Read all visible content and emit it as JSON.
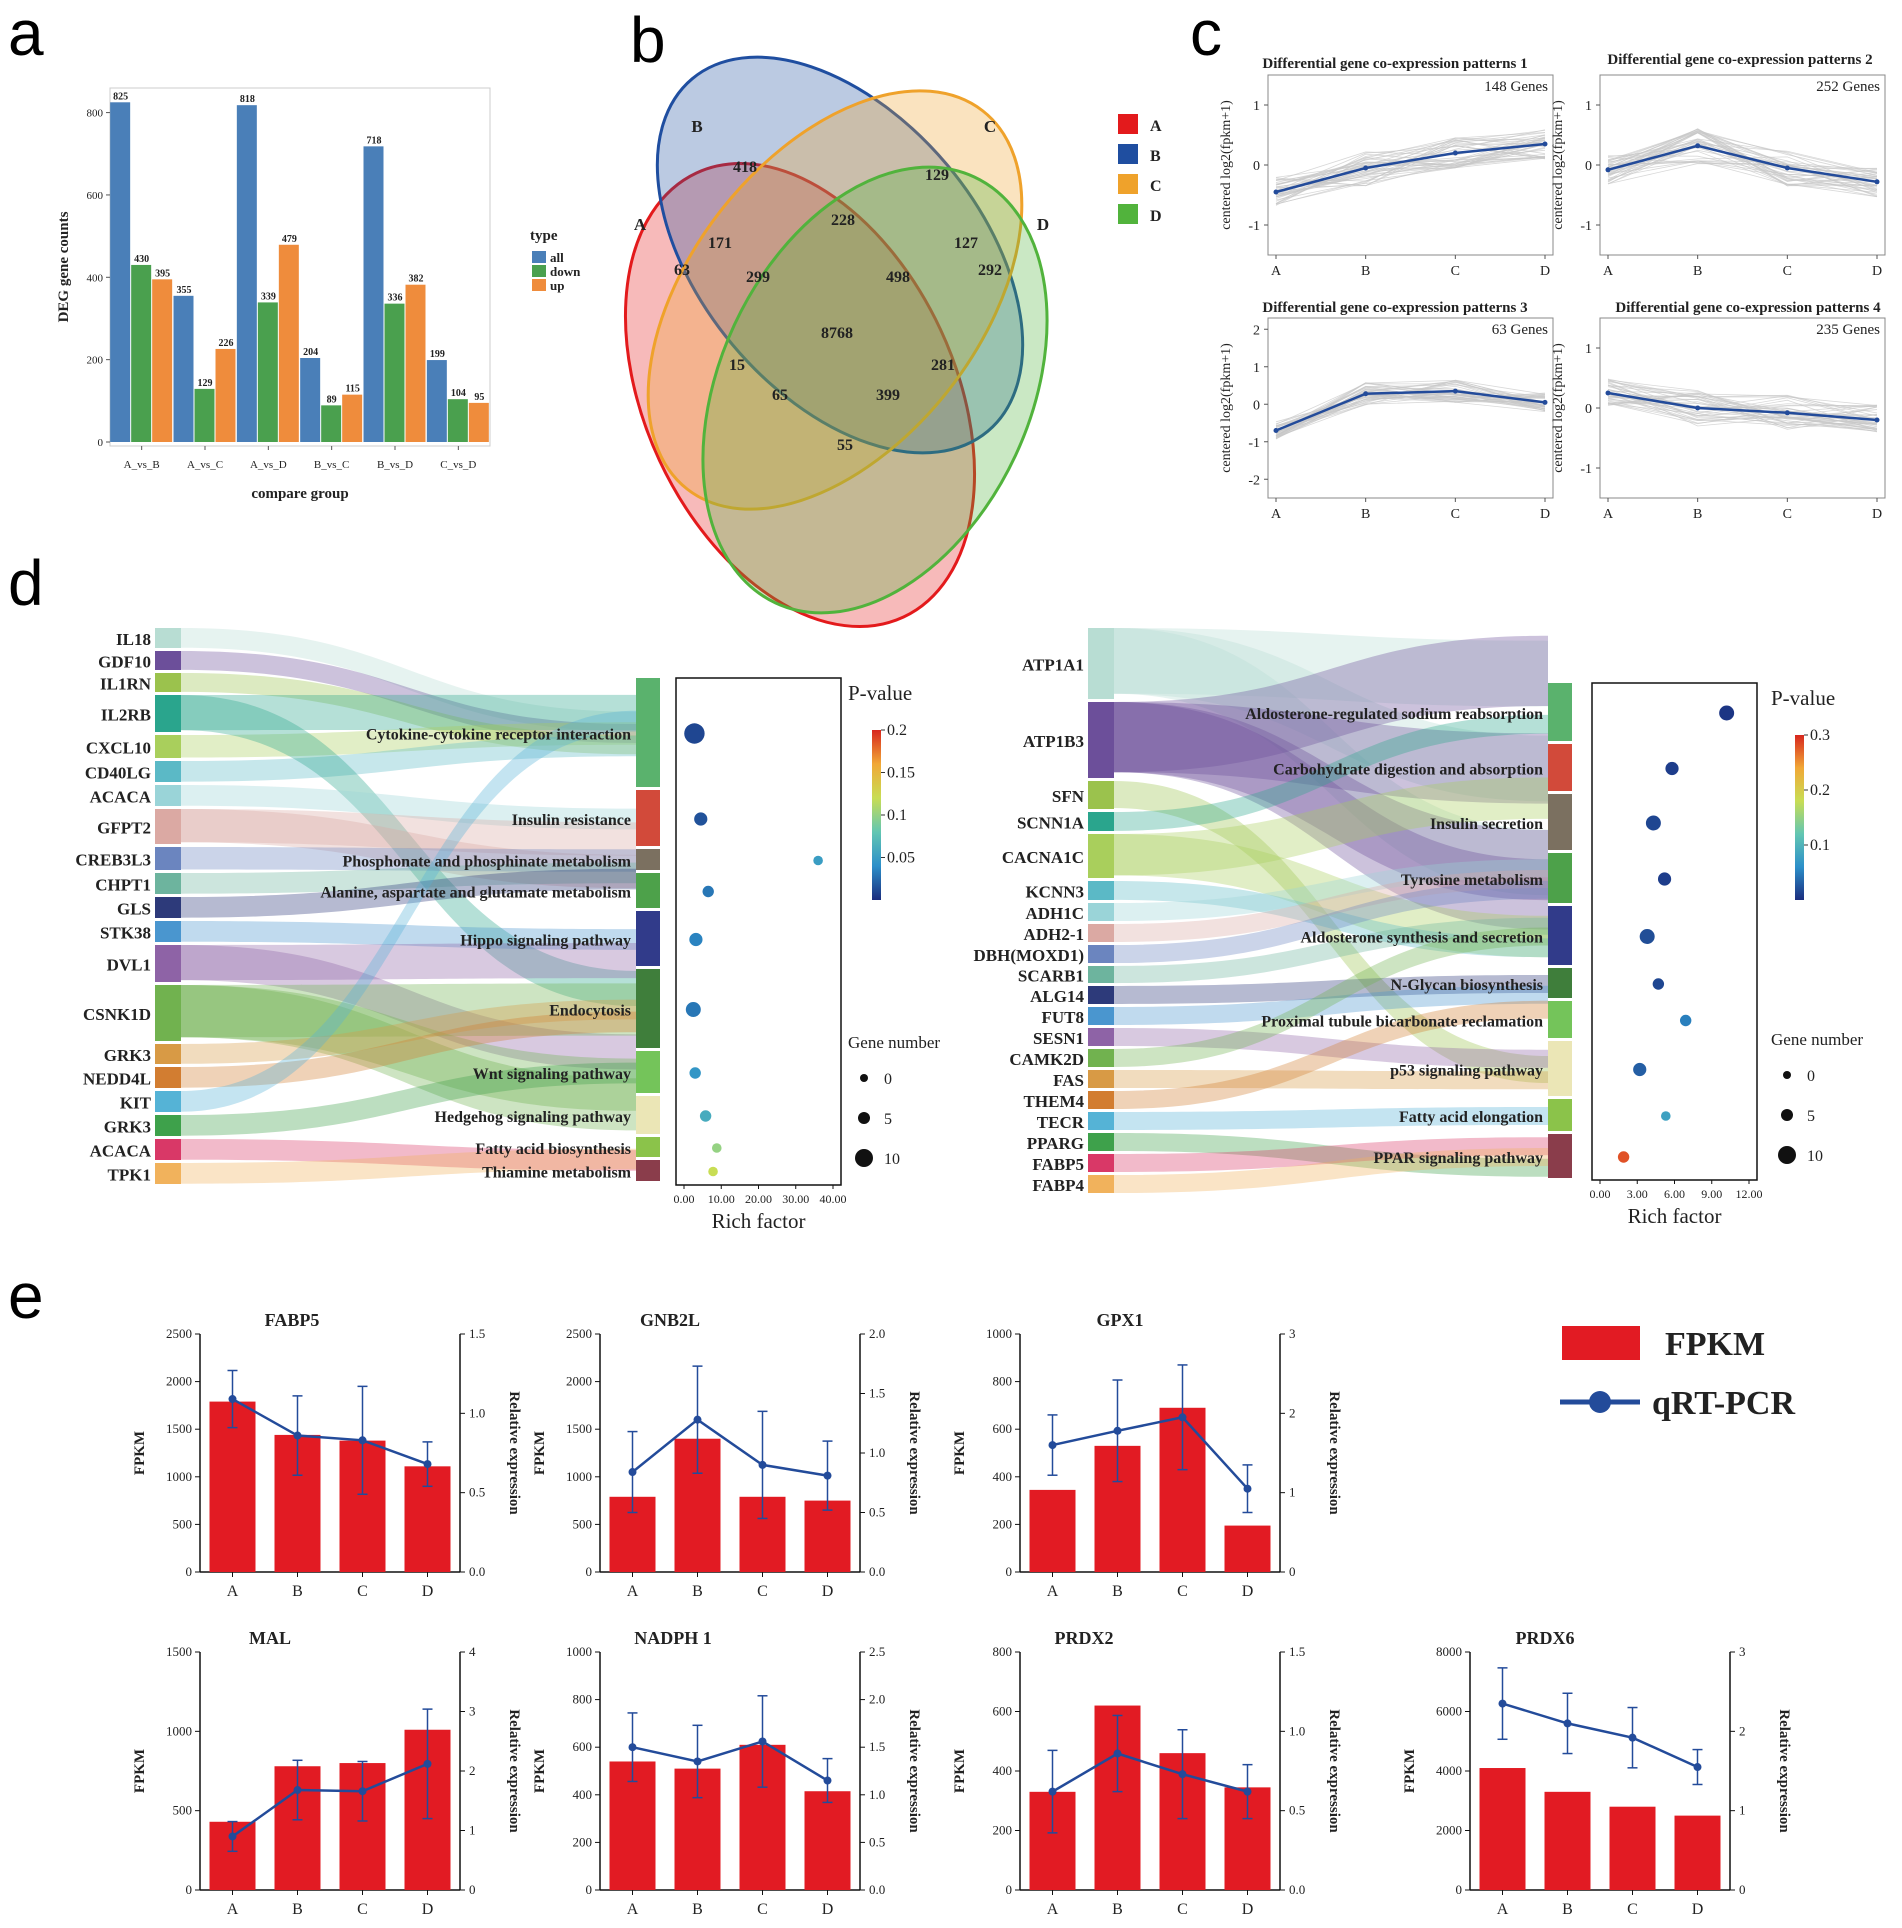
{
  "panels": {
    "a": "a",
    "b": "b",
    "c": "c",
    "d": "d",
    "e": "e"
  },
  "colors": {
    "all": "#4a7fb8",
    "down": "#4aa04e",
    "up": "#ef8c3c",
    "fpkm": "#e21b23",
    "qpcr": "#234b9a",
    "venn_A": "#e31a1c",
    "venn_B": "#1f4ea0",
    "venn_C": "#efa22b",
    "venn_D": "#51b33c"
  },
  "chart_data": [
    {
      "id": "deg_bar",
      "type": "bar",
      "ylabel": "DEG gene counts",
      "xlabel": "compare group",
      "ylim": [
        0,
        850
      ],
      "yticks": [
        "0",
        "200",
        "400",
        "600",
        "800"
      ],
      "ytick_values": [
        0,
        200,
        400,
        600,
        800
      ],
      "categories": [
        "A_vs_B",
        "A_vs_C",
        "A_vs_D",
        "B_vs_C",
        "B_vs_D",
        "C_vs_D"
      ],
      "legend_title": "type",
      "series": [
        {
          "name": "all",
          "values": [
            825,
            355,
            818,
            204,
            718,
            199
          ]
        },
        {
          "name": "down",
          "values": [
            430,
            129,
            339,
            89,
            336,
            104
          ]
        },
        {
          "name": "up",
          "values": [
            395,
            226,
            479,
            115,
            382,
            95
          ]
        }
      ]
    },
    {
      "id": "venn",
      "type": "venn",
      "sets": [
        "A",
        "B",
        "C",
        "D"
      ],
      "regions": {
        "B_only": "418",
        "C_only": "129",
        "A_only": "63",
        "D_only": "292",
        "BC": "228",
        "AB": "171",
        "CD": "127",
        "ABC": "299",
        "BCD": "498",
        "ABCD": "8768",
        "AC": "15",
        "ACD": "65",
        "BD": "281",
        "ABD": "399",
        "AD": "55"
      }
    },
    {
      "id": "coexpr",
      "type": "line",
      "x": [
        "A",
        "B",
        "C",
        "D"
      ],
      "ylabel": "centered log2(fpkm+1)",
      "panels": [
        {
          "title": "Differential gene co-expression patterns 1",
          "genes": "148 Genes",
          "ylim": [
            -1.5,
            1.5
          ],
          "yticks": [
            "1",
            "0",
            "-1"
          ],
          "ytick_values": [
            1,
            0,
            -1
          ],
          "values": [
            -0.45,
            -0.05,
            0.2,
            0.35
          ]
        },
        {
          "title": "Differential gene co-expression patterns 2",
          "genes": "252 Genes",
          "ylim": [
            -1.5,
            1.5
          ],
          "yticks": [
            "1",
            "0",
            "-1"
          ],
          "ytick_values": [
            1,
            0,
            -1
          ],
          "values": [
            -0.08,
            0.32,
            -0.05,
            -0.28
          ]
        },
        {
          "title": "Differential gene co-expression patterns 3",
          "genes": "63 Genes",
          "ylim": [
            -2.5,
            2.3
          ],
          "yticks": [
            "2",
            "1",
            "0",
            "-1",
            "-2"
          ],
          "ytick_values": [
            2,
            1,
            0,
            -1,
            -2
          ],
          "values": [
            -0.7,
            0.28,
            0.35,
            0.05
          ]
        },
        {
          "title": "Differential gene co-expression patterns 4",
          "genes": "235 Genes",
          "ylim": [
            -1.5,
            1.5
          ],
          "yticks": [
            "1",
            "0",
            "-1"
          ],
          "ytick_values": [
            1,
            0,
            -1
          ],
          "values": [
            0.25,
            0.0,
            -0.08,
            -0.2
          ]
        }
      ]
    },
    {
      "id": "kegg_left",
      "type": "scatter",
      "genes": [
        "IL18",
        "GDF10",
        "IL1RN",
        "IL2RB",
        "CXCL10",
        "CD40LG",
        "ACACA",
        "GFPT2",
        "CREB3L3",
        "CHPT1",
        "GLS",
        "STK38",
        "DVL1",
        "CSNK1D",
        "GRK3",
        "NEDD4L",
        "KIT",
        "GRK3",
        "ACACA",
        "TPK1"
      ],
      "pathways": [
        "Cytokine-cytokine receptor interaction",
        "Insulin resistance",
        "Phosphonate and phosphinate metabolism",
        "Alanine, aspartate and glutamate metabolism",
        "Hippo signaling pathway",
        "Endocytosis",
        "Wnt signaling pathway",
        "Hedgehog signaling pathway",
        "Fatty acid biosynthesis",
        "Thiamine metabolism"
      ],
      "rich_factor": [
        2.8,
        4.5,
        36,
        6.5,
        3.2,
        2.5,
        3.0,
        5.8,
        8.8,
        7.8
      ],
      "pvalue": [
        0.01,
        0.015,
        0.05,
        0.03,
        0.035,
        0.03,
        0.045,
        0.06,
        0.1,
        0.12
      ],
      "gene_number": [
        8,
        4,
        2,
        3,
        4,
        5,
        3,
        3,
        2,
        2
      ],
      "xlabel": "Rich factor",
      "xticks": [
        "0.00",
        "10.00",
        "20.00",
        "30.00",
        "40.00"
      ],
      "xtick_values": [
        0,
        10,
        20,
        30,
        40
      ],
      "xlim": [
        0,
        40
      ],
      "color_title": "P-value",
      "color_ticks": [
        "0.2",
        "0.15",
        "0.1",
        "0.05"
      ],
      "color_tick_values": [
        0.2,
        0.15,
        0.1,
        0.05
      ],
      "color_range": [
        0,
        0.2
      ],
      "size_title": "Gene number",
      "size_ticks": [
        "0",
        "5",
        "10"
      ]
    },
    {
      "id": "kegg_right",
      "type": "scatter",
      "genes": [
        "ATP1A1",
        "ATP1B3",
        "SFN",
        "SCNN1A",
        "CACNA1C",
        "KCNN3",
        "ADH1C",
        "ADH2-1",
        "DBH(MOXD1)",
        "SCARB1",
        "ALG14",
        "FUT8",
        "SESN1",
        "CAMK2D",
        "FAS",
        "THEM4",
        "TECR",
        "PPARG",
        "FABP5",
        "FABP4"
      ],
      "pathways": [
        "Aldosterone-regulated sodium reabsorption",
        "Carbohydrate digestion and absorption",
        "Insulin secretion",
        "Tyrosine metabolism",
        "Aldosterone synthesis and secretion",
        "N-Glycan biosynthesis",
        "Proximal tubule bicarbonate reclamation",
        "p53 signaling pathway",
        "Fatty acid elongation",
        "PPAR signaling pathway"
      ],
      "rich_factor": [
        10.2,
        5.8,
        4.3,
        5.2,
        3.8,
        4.7,
        6.9,
        3.2,
        5.3,
        1.9
      ],
      "pvalue": [
        0.005,
        0.01,
        0.015,
        0.01,
        0.02,
        0.015,
        0.05,
        0.03,
        0.08,
        0.28
      ],
      "gene_number": [
        5,
        4,
        5,
        4,
        5,
        3,
        3,
        4,
        2,
        3
      ],
      "xlabel": "Rich factor",
      "xticks": [
        "0.00",
        "3.00",
        "6.00",
        "9.00",
        "12.00"
      ],
      "xtick_values": [
        0,
        3,
        6,
        9,
        12
      ],
      "xlim": [
        0,
        12
      ],
      "color_title": "P-value",
      "color_ticks": [
        "0.3",
        "0.2",
        "0.1"
      ],
      "color_tick_values": [
        0.3,
        0.2,
        0.1
      ],
      "color_range": [
        0,
        0.3
      ],
      "size_title": "Gene number",
      "size_ticks": [
        "0",
        "5",
        "10"
      ]
    },
    {
      "id": "qpcr",
      "type": "bar+line",
      "x": [
        "A",
        "B",
        "C",
        "D"
      ],
      "ylabel_left": "FPKM",
      "ylabel_right": "Relative expression",
      "legend": [
        "FPKM",
        "qRT-PCR"
      ],
      "panels": [
        {
          "title": "FABP5",
          "fpkm": [
            1790,
            1440,
            1380,
            1110
          ],
          "fpkm_max": 2500,
          "fpkm_ticks": [
            "0",
            "500",
            "1000",
            "1500",
            "2000",
            "2500"
          ],
          "rel": [
            1.09,
            0.86,
            0.83,
            0.68
          ],
          "err": [
            0.18,
            0.25,
            0.34,
            0.14
          ],
          "rel_max": 1.5,
          "rel_ticks": [
            "0.0",
            "0.5",
            "1.0",
            "1.5"
          ]
        },
        {
          "title": "GNB2L",
          "fpkm": [
            790,
            1400,
            790,
            750
          ],
          "fpkm_max": 2500,
          "fpkm_ticks": [
            "0",
            "500",
            "1000",
            "1500",
            "2000",
            "2500"
          ],
          "rel": [
            0.84,
            1.28,
            0.9,
            0.81
          ],
          "err": [
            0.34,
            0.45,
            0.45,
            0.29
          ],
          "rel_max": 2.0,
          "rel_ticks": [
            "0.0",
            "0.5",
            "1.0",
            "1.5",
            "2.0"
          ]
        },
        {
          "title": "GPX1",
          "fpkm": [
            345,
            530,
            690,
            195
          ],
          "fpkm_max": 1000,
          "fpkm_ticks": [
            "0",
            "200",
            "400",
            "600",
            "800",
            "1000"
          ],
          "rel": [
            1.6,
            1.78,
            1.95,
            1.05
          ],
          "err": [
            0.38,
            0.64,
            0.66,
            0.3
          ],
          "rel_max": 3,
          "rel_ticks": [
            "0",
            "1",
            "2",
            "3"
          ]
        },
        {
          "title": "MAL",
          "fpkm": [
            430,
            780,
            800,
            1010
          ],
          "fpkm_max": 1500,
          "fpkm_ticks": [
            "0",
            "500",
            "1000",
            "1500"
          ],
          "rel": [
            0.9,
            1.68,
            1.66,
            2.12
          ],
          "err": [
            0.25,
            0.5,
            0.5,
            0.92
          ],
          "rel_max": 4,
          "rel_ticks": [
            "0",
            "1",
            "2",
            "3",
            "4"
          ]
        },
        {
          "title": "NADPH 1",
          "fpkm": [
            540,
            510,
            610,
            415
          ],
          "fpkm_max": 1000,
          "fpkm_ticks": [
            "0",
            "200",
            "400",
            "600",
            "800",
            "1000"
          ],
          "rel": [
            1.5,
            1.35,
            1.56,
            1.15
          ],
          "err": [
            0.36,
            0.38,
            0.48,
            0.23
          ],
          "rel_max": 2.5,
          "rel_ticks": [
            "0.0",
            "0.5",
            "1.0",
            "1.5",
            "2.0",
            "2.5"
          ]
        },
        {
          "title": "PRDX2",
          "fpkm": [
            330,
            620,
            460,
            345
          ],
          "fpkm_max": 800,
          "fpkm_ticks": [
            "0",
            "200",
            "400",
            "600",
            "800"
          ],
          "rel": [
            0.62,
            0.86,
            0.73,
            0.62
          ],
          "err": [
            0.26,
            0.24,
            0.28,
            0.17
          ],
          "rel_max": 1.5,
          "rel_ticks": [
            "0.0",
            "0.5",
            "1.0",
            "1.5"
          ]
        },
        {
          "title": "PRDX6",
          "fpkm": [
            4100,
            3300,
            2800,
            2500
          ],
          "fpkm_max": 8000,
          "fpkm_ticks": [
            "0",
            "2000",
            "4000",
            "6000",
            "8000"
          ],
          "rel": [
            2.35,
            2.1,
            1.92,
            1.55
          ],
          "err": [
            0.45,
            0.38,
            0.38,
            0.22
          ],
          "rel_max": 3,
          "rel_ticks": [
            "0",
            "1",
            "2",
            "3"
          ]
        }
      ]
    }
  ]
}
